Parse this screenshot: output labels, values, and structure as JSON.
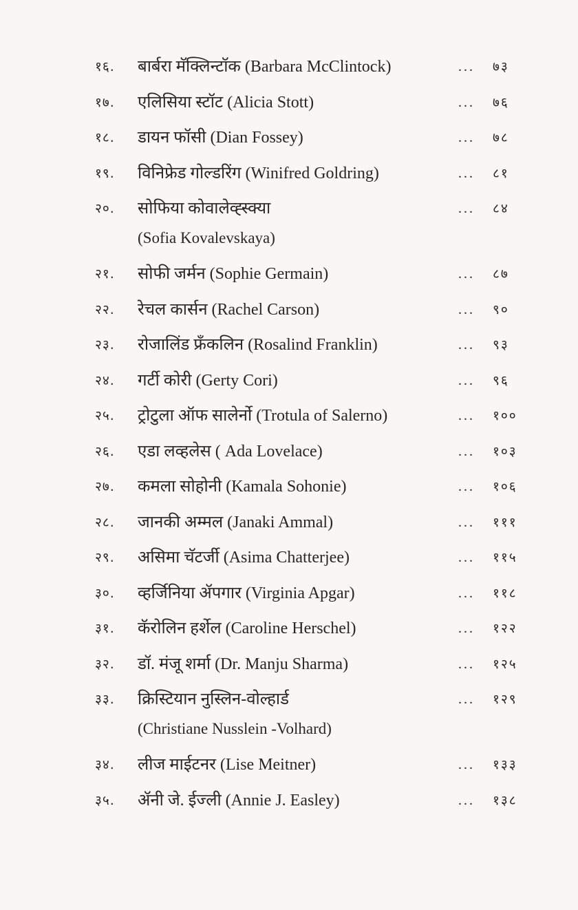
{
  "entries": [
    {
      "num": "१६.",
      "title": "बार्बरा मॅक्लिन्टॉक (Barbara McClintock)",
      "page": "७३"
    },
    {
      "num": "१७.",
      "title": "एलिसिया स्टॉट (Alicia Stott)",
      "page": "७६"
    },
    {
      "num": "१८.",
      "title": "डायन फॉसी (Dian Fossey)",
      "page": "७८"
    },
    {
      "num": "१९.",
      "title": "विनिफ्रेड गोल्डरिंग (Winifred Goldring)",
      "page": "८१"
    },
    {
      "num": "२०.",
      "title": "सोफिया  कोवालेव्ह्स्क्या",
      "title2": "(Sofia Kovalevskaya)",
      "page": "८४"
    },
    {
      "num": "२१.",
      "title": "सोफी जर्मन (Sophie Germain)",
      "page": "८७"
    },
    {
      "num": "२२.",
      "title": "रेचल कार्सन (Rachel Carson)",
      "page": "९०"
    },
    {
      "num": "२३.",
      "title": "रोजालिंड फ्रॅंकलिन (Rosalind Franklin)",
      "page": "९३"
    },
    {
      "num": "२४.",
      "title": "गर्टी कोरी (Gerty Cori)",
      "page": "९६"
    },
    {
      "num": "२५.",
      "title": "ट्रोटुला ऑफ सालेर्नो (Trotula of Salerno)",
      "page": "१००"
    },
    {
      "num": "२६.",
      "title": "एडा लव्हलेस ( Ada Lovelace)",
      "page": "१०३"
    },
    {
      "num": "२७.",
      "title": "कमला सोहोनी (Kamala Sohonie)",
      "page": "१०६"
    },
    {
      "num": "२८.",
      "title": "जानकी अम्मल (Janaki Ammal)",
      "page": "१११"
    },
    {
      "num": "२९.",
      "title": "असिमा चॅटर्जी (Asima Chatterjee)",
      "page": "११५"
    },
    {
      "num": "३०.",
      "title": "व्हर्जिनिया ॲपगार (Virginia Apgar)",
      "page": "११८"
    },
    {
      "num": "३१.",
      "title": "कॅरोलिन हर्शेल (Caroline Herschel)",
      "page": "१२२"
    },
    {
      "num": "३२.",
      "title": "डॉ. मंजू शर्मा (Dr. Manju Sharma)",
      "page": "१२५"
    },
    {
      "num": "३३.",
      "title": "क्रिस्टियान  नुस्लिन-वोल्हार्ड",
      "title2": "(Christiane Nusslein -Volhard)",
      "page": "१२९"
    },
    {
      "num": "३४.",
      "title": "लीज माईटनर (Lise Meitner)",
      "page": "१३३"
    },
    {
      "num": "३५.",
      "title": "ॲनी जे. ईज्ली (Annie J. Easley)",
      "page": "१३८"
    }
  ],
  "leader": "..."
}
